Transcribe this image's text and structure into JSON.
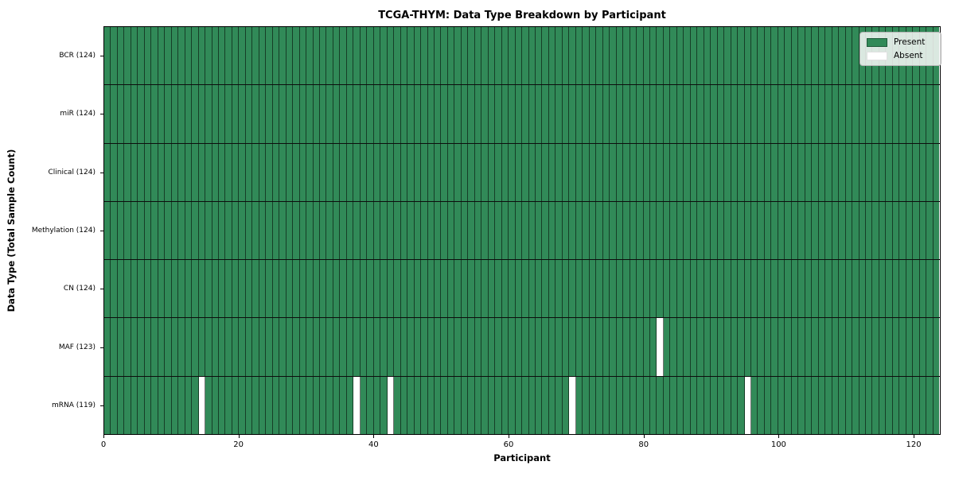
{
  "chart_data": {
    "type": "heatmap",
    "title": "TCGA-THYM: Data Type Breakdown by Participant",
    "xlabel": "Participant",
    "ylabel": "Data Type (Total Sample Count)",
    "xlim": [
      0,
      124
    ],
    "x_ticks": [
      0,
      20,
      40,
      60,
      80,
      100,
      120
    ],
    "n_participants": 124,
    "grid": true,
    "legend_position": "upper right",
    "rows": [
      {
        "label": "BCR (124)",
        "data_type": "BCR",
        "present_count": 124,
        "absent_participants": []
      },
      {
        "label": "miR (124)",
        "data_type": "miR",
        "present_count": 124,
        "absent_participants": []
      },
      {
        "label": "Clinical (124)",
        "data_type": "Clinical",
        "present_count": 124,
        "absent_participants": []
      },
      {
        "label": "Methylation (124)",
        "data_type": "Methylation",
        "present_count": 124,
        "absent_participants": []
      },
      {
        "label": "CN (124)",
        "data_type": "CN",
        "present_count": 124,
        "absent_participants": []
      },
      {
        "label": "MAF (123)",
        "data_type": "MAF",
        "present_count": 123,
        "absent_participants": [
          82
        ]
      },
      {
        "label": "mRNA (119)",
        "data_type": "mRNA",
        "present_count": 119,
        "absent_participants": [
          14,
          37,
          42,
          69,
          95
        ]
      }
    ],
    "legend": [
      {
        "label": "Present",
        "color": "#2e8b57"
      },
      {
        "label": "Absent",
        "color": "#ffffff"
      }
    ],
    "colors": {
      "present": "#318a58",
      "absent": "#ffffff",
      "edge": "rgba(0,0,0,0.55)",
      "row_separator": "#0d0d0d",
      "spine": "#000000"
    }
  }
}
